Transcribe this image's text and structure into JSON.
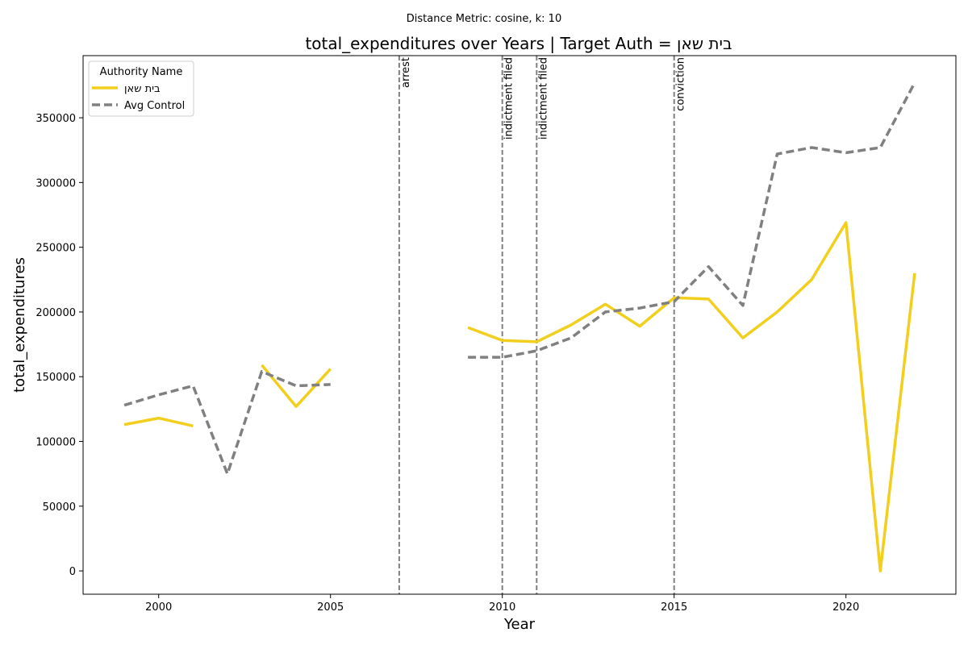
{
  "chart_data": {
    "type": "line",
    "suptitle": "Distance Metric: cosine, k: 10",
    "title": "total_expenditures over Years | Target Auth = בית שאן",
    "xlabel": "Year",
    "ylabel": "total_expenditures",
    "xlim": [
      1997.8,
      2023.2
    ],
    "ylim": [
      -18000,
      398000
    ],
    "xticks": [
      2000,
      2005,
      2010,
      2015,
      2020
    ],
    "yticks": [
      0,
      50000,
      100000,
      150000,
      200000,
      250000,
      300000,
      350000
    ],
    "grid": false,
    "legend": {
      "title": "Authority Name",
      "placement": "top-left"
    },
    "series": [
      {
        "name": "בית שאן",
        "color": "#f2ce1d",
        "style": "solid",
        "points": [
          [
            1999,
            113000
          ],
          [
            2000,
            118000
          ],
          [
            2001,
            112000
          ],
          [
            2002,
            null
          ],
          [
            2003,
            159000
          ],
          [
            2004,
            127000
          ],
          [
            2005,
            156000
          ],
          [
            2006,
            null
          ],
          [
            2007,
            null
          ],
          [
            2008,
            null
          ],
          [
            2009,
            188000
          ],
          [
            2010,
            178000
          ],
          [
            2011,
            177000
          ],
          [
            2012,
            190000
          ],
          [
            2013,
            206000
          ],
          [
            2014,
            189000
          ],
          [
            2015,
            211000
          ],
          [
            2016,
            210000
          ],
          [
            2017,
            180000
          ],
          [
            2018,
            200000
          ],
          [
            2019,
            225000
          ],
          [
            2020,
            269000
          ],
          [
            2021,
            0
          ],
          [
            2022,
            230000
          ]
        ]
      },
      {
        "name": "Avg Control",
        "color": "#808080",
        "style": "dashed",
        "points": [
          [
            1999,
            128000
          ],
          [
            2000,
            136000
          ],
          [
            2001,
            143000
          ],
          [
            2002,
            75000
          ],
          [
            2003,
            154000
          ],
          [
            2004,
            143000
          ],
          [
            2005,
            144000
          ],
          [
            2006,
            null
          ],
          [
            2007,
            null
          ],
          [
            2008,
            null
          ],
          [
            2009,
            165000
          ],
          [
            2010,
            165000
          ],
          [
            2011,
            170000
          ],
          [
            2012,
            180000
          ],
          [
            2013,
            200000
          ],
          [
            2014,
            203000
          ],
          [
            2015,
            208000
          ],
          [
            2016,
            235000
          ],
          [
            2017,
            205000
          ],
          [
            2018,
            322000
          ],
          [
            2019,
            327000
          ],
          [
            2020,
            323000
          ],
          [
            2021,
            327000
          ],
          [
            2022,
            377000
          ]
        ]
      }
    ],
    "events": [
      {
        "year": 2007,
        "label": "arrest"
      },
      {
        "year": 2010,
        "label": "indictment filed"
      },
      {
        "year": 2011,
        "label": "indictment filed"
      },
      {
        "year": 2015,
        "label": "conviction"
      }
    ]
  }
}
